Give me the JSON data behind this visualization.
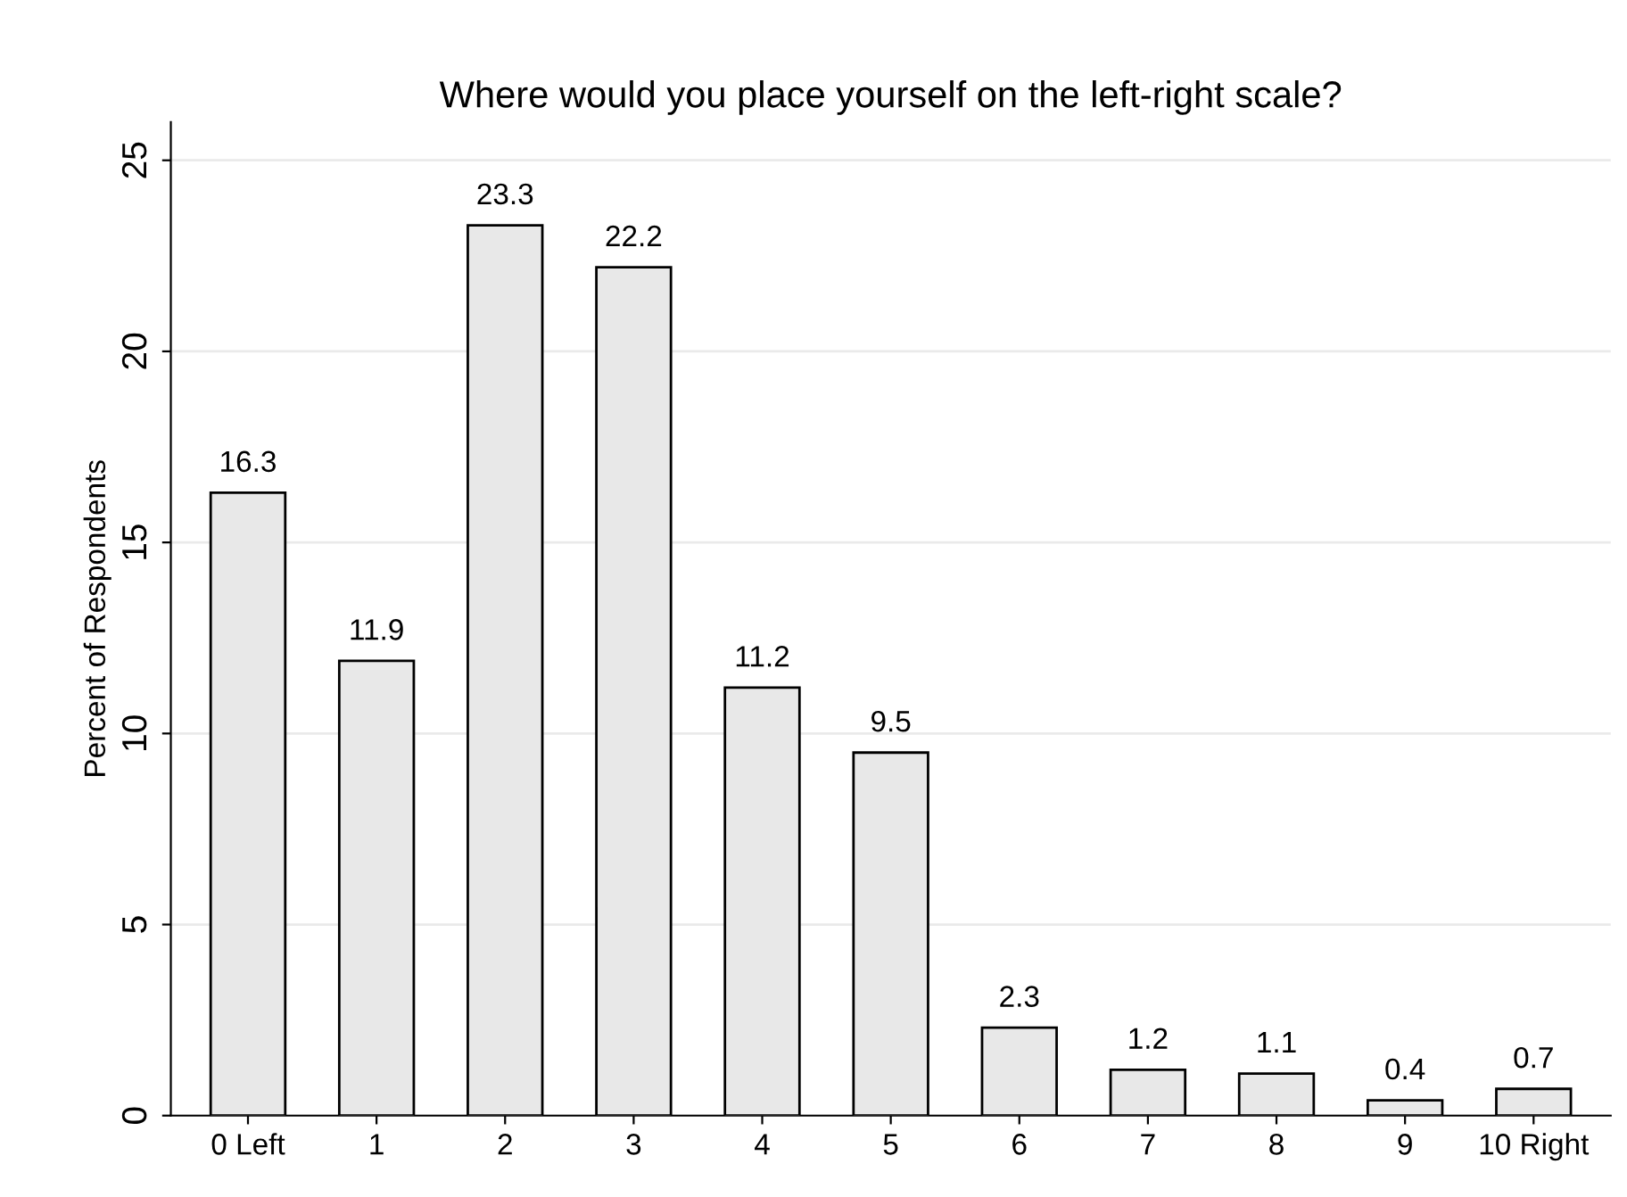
{
  "chart_data": {
    "type": "bar",
    "title": "Where would you place yourself on the left-right scale?",
    "ylabel": "Percent of Respondents",
    "categories": [
      "0 Left",
      "1",
      "2",
      "3",
      "4",
      "5",
      "6",
      "7",
      "8",
      "9",
      "10 Right"
    ],
    "values": [
      16.3,
      11.9,
      23.3,
      22.2,
      11.2,
      9.5,
      2.3,
      1.2,
      1.1,
      0.4,
      0.7
    ],
    "color": "#e8e8e8",
    "ylim": [
      0,
      26
    ],
    "yticks": [
      0,
      5,
      10,
      15,
      20,
      25
    ],
    "grid": "y",
    "data_labels": true
  }
}
